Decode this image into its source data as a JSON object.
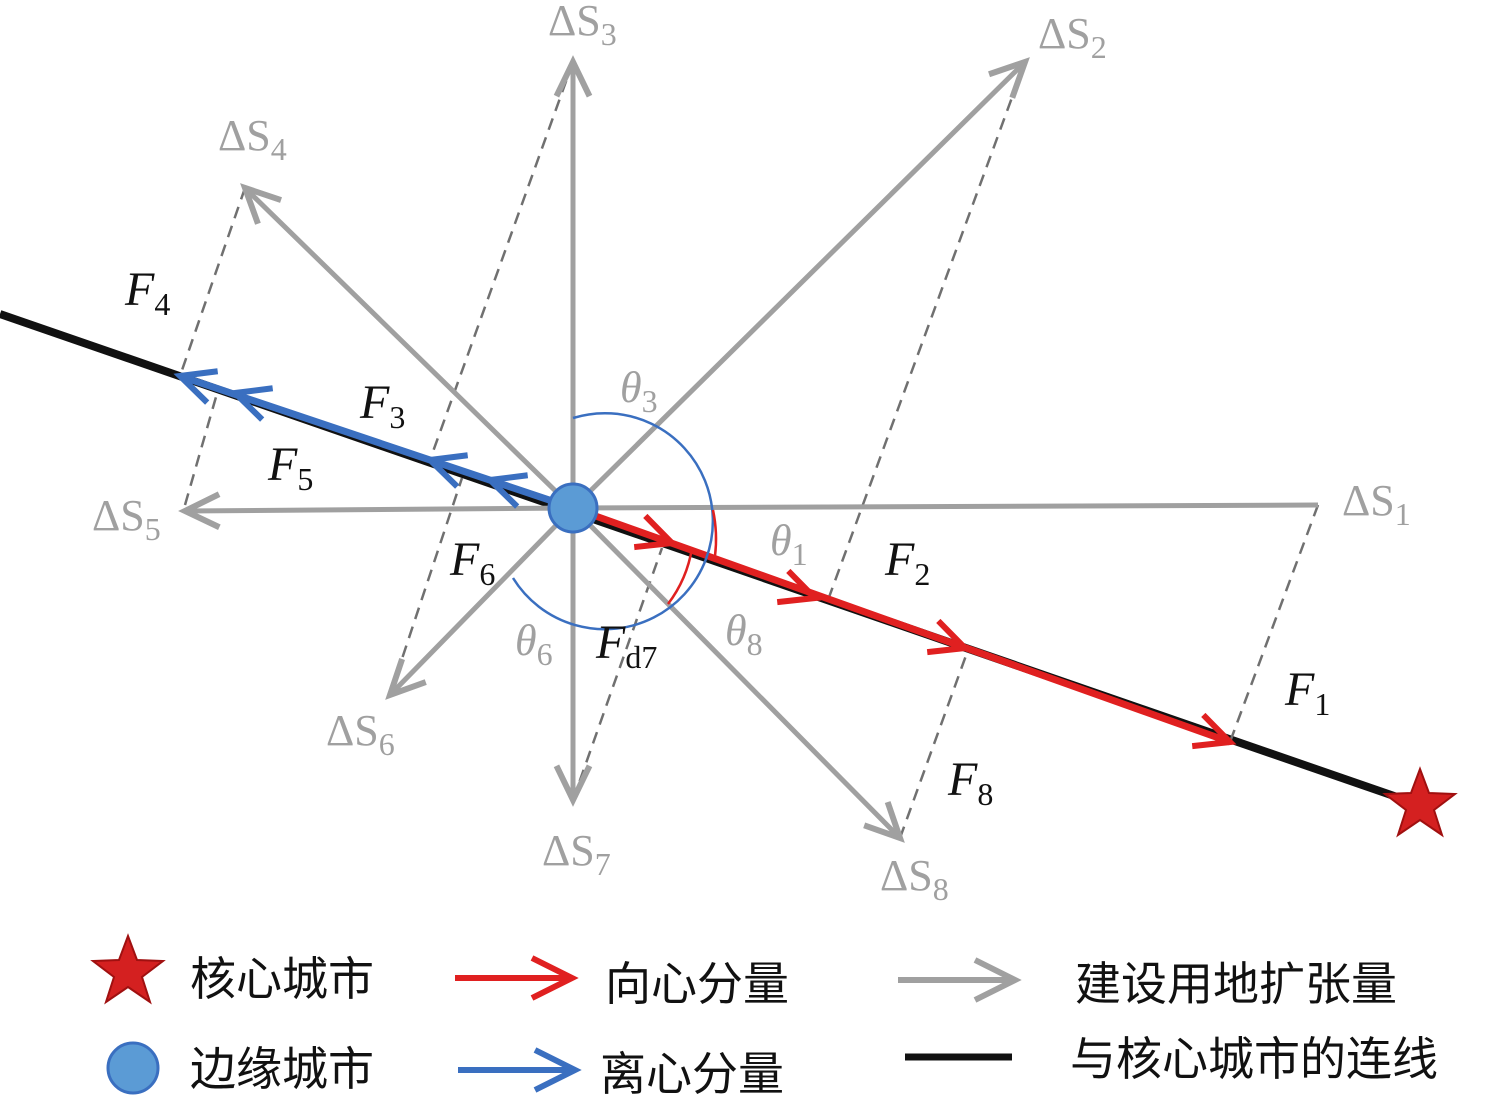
{
  "colors": {
    "centripetal": "#e02020",
    "centrifugal": "#3a6fc0",
    "expansion": "#a0a0a0",
    "link": "#111111",
    "core_city": "#c81e1e",
    "edge_city": "#5b9bd5"
  },
  "labels": {
    "s": [
      "ΔS",
      "1",
      "2",
      "3",
      "4",
      "5",
      "6",
      "7",
      "8"
    ],
    "f": [
      "F",
      "1",
      "2",
      "3",
      "4",
      "5",
      "6",
      "d7",
      "8"
    ],
    "theta": [
      "θ",
      "1",
      "3",
      "6",
      "8"
    ]
  },
  "legend": {
    "core_city": "核心城市",
    "edge_city": "边缘城市",
    "centripetal": "向心分量",
    "centrifugal": "离心分量",
    "expansion": "建设用地扩张量",
    "link": "与核心城市的连线"
  }
}
